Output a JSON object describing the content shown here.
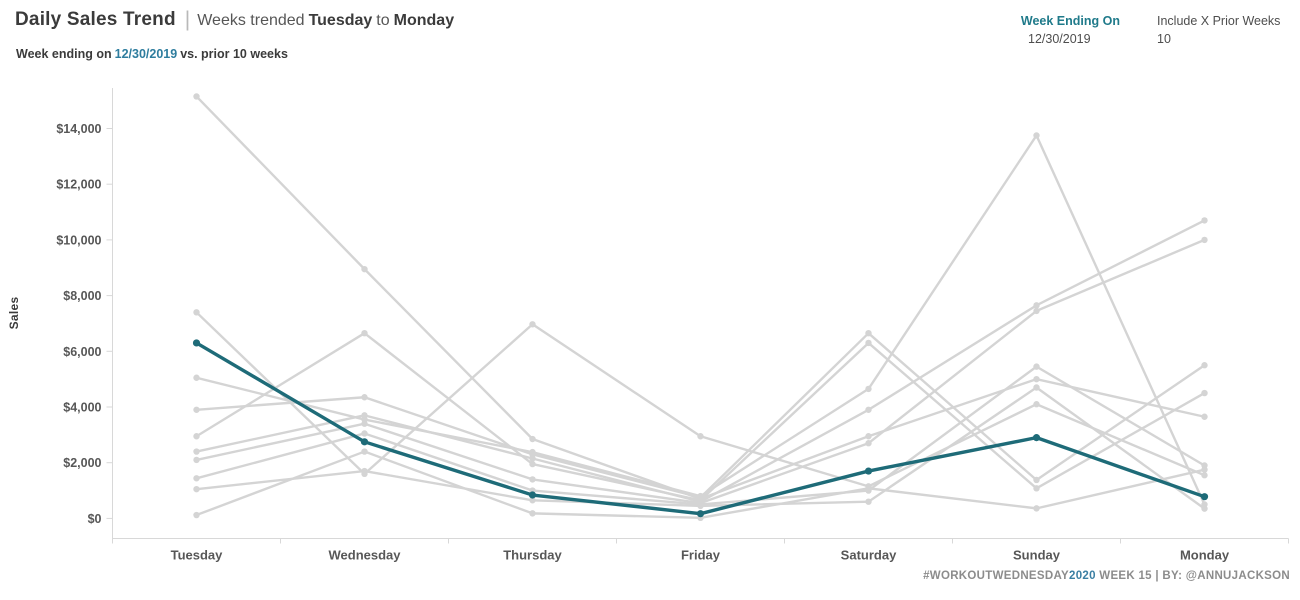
{
  "header": {
    "title": "Daily Sales Trend",
    "divider": "|",
    "tagline": {
      "lead": "Weeks trended",
      "day_start": "Tuesday",
      "joiner": "to",
      "day_end": "Monday"
    },
    "subtitle": {
      "lead": "Week ending on",
      "date": "12/30/2019",
      "tail": "vs. prior 10 weeks"
    }
  },
  "parameters": {
    "week_ending_on": {
      "label": "Week Ending On",
      "value": "12/30/2019"
    },
    "include_prior_weeks": {
      "label": "Include X Prior Weeks",
      "value": "10"
    }
  },
  "footer": {
    "hashtag": "#WORKOUTWEDNESDAY",
    "year": "2020",
    "rest": " WEEK 15 | BY: @ANNUJACKSON"
  },
  "colors": {
    "current_week": "#1e6b78",
    "prior_week": "#d4d4d4",
    "accent_text": "#2e7d9e",
    "axis_line": "#d8d8d8",
    "axis_text": "#575757"
  },
  "chart_data": {
    "type": "line",
    "title": "Daily Sales Trend | Weeks trended Tuesday to Monday",
    "xlabel": "",
    "ylabel": "Sales",
    "categories": [
      "Tuesday",
      "Wednesday",
      "Thursday",
      "Friday",
      "Saturday",
      "Sunday",
      "Monday"
    ],
    "y_ticks": {
      "values": [
        0,
        2000,
        4000,
        6000,
        8000,
        10000,
        12000,
        14000
      ],
      "labels": [
        "$0",
        "$2,000",
        "$4,000",
        "$6,000",
        "$8,000",
        "$10,000",
        "$12,000",
        "$14,000"
      ]
    },
    "ylim": [
      0,
      15500
    ],
    "grid": false,
    "legend": "none",
    "series": [
      {
        "name": "prior_week_1",
        "color": "#d4d4d4",
        "width": 2.4,
        "highlight": false,
        "values": [
          15150,
          8950,
          2850,
          700,
          2950,
          5000,
          3650
        ]
      },
      {
        "name": "prior_week_2",
        "color": "#d4d4d4",
        "width": 2.4,
        "highlight": false,
        "values": [
          7400,
          1600,
          6970,
          2950,
          1150,
          4100,
          1550
        ]
      },
      {
        "name": "prior_week_3",
        "color": "#d4d4d4",
        "width": 2.4,
        "highlight": false,
        "values": [
          5050,
          3550,
          2380,
          800,
          4650,
          13750,
          500
        ]
      },
      {
        "name": "prior_week_4",
        "color": "#d4d4d4",
        "width": 2.4,
        "highlight": false,
        "values": [
          3900,
          4350,
          2300,
          750,
          6650,
          1380,
          5500
        ]
      },
      {
        "name": "prior_week_5",
        "color": "#d4d4d4",
        "width": 2.4,
        "highlight": false,
        "values": [
          2950,
          6650,
          1950,
          650,
          6300,
          1080,
          4500
        ]
      },
      {
        "name": "prior_week_6",
        "color": "#d4d4d4",
        "width": 2.4,
        "highlight": false,
        "values": [
          2400,
          3700,
          2150,
          600,
          3900,
          7650,
          10700
        ]
      },
      {
        "name": "prior_week_7",
        "color": "#d4d4d4",
        "width": 2.4,
        "highlight": false,
        "values": [
          2100,
          3400,
          1400,
          550,
          2700,
          7450,
          10000
        ]
      },
      {
        "name": "prior_week_8",
        "color": "#d4d4d4",
        "width": 2.4,
        "highlight": false,
        "values": [
          1440,
          3050,
          1000,
          500,
          1000,
          5450,
          1900
        ]
      },
      {
        "name": "prior_week_9",
        "color": "#d4d4d4",
        "width": 2.4,
        "highlight": false,
        "values": [
          1050,
          1700,
          650,
          450,
          600,
          4700,
          350
        ]
      },
      {
        "name": "prior_week_10",
        "color": "#d4d4d4",
        "width": 2.4,
        "highlight": false,
        "values": [
          120,
          2400,
          180,
          20,
          1080,
          360,
          1750
        ]
      },
      {
        "name": "week_ending_12/30/2019",
        "color": "#1e6b78",
        "width": 3.4,
        "highlight": true,
        "values": [
          6300,
          2750,
          840,
          170,
          1700,
          2900,
          780
        ]
      }
    ]
  }
}
